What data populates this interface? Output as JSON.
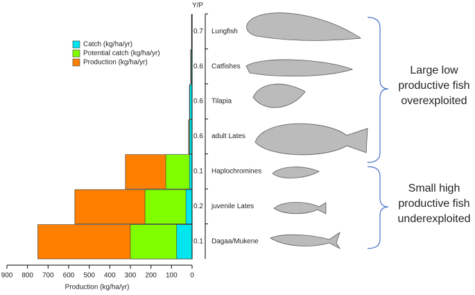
{
  "chart_data": {
    "type": "bar",
    "orientation": "horizontal",
    "categories": [
      "Lungfish",
      "Catfishes",
      "Tilapia",
      "adult Lates",
      "Haplochromines",
      "juvenile Lates",
      "Dagaa/Mukene"
    ],
    "series": [
      {
        "name": "Production (kg/ha/yr)",
        "color": "#ff7f00",
        "values": [
          3,
          7,
          13,
          17,
          324,
          570,
          750
        ]
      },
      {
        "name": "Potential catch (kg/ha/yr)",
        "color": "#80ff00",
        "values": [
          2,
          5,
          12,
          14,
          128,
          229,
          300
        ]
      },
      {
        "name": "Catch (kg/ha/yr)",
        "color": "#00e5ee",
        "values": [
          1,
          4,
          11,
          12,
          13,
          30,
          75
        ]
      }
    ],
    "yp_title": "Y/P",
    "yp_values": [
      0.7,
      0.6,
      0.6,
      0.6,
      0.1,
      0.2,
      0.1
    ],
    "xlim": [
      900,
      0
    ],
    "xticks": [
      900,
      800,
      700,
      600,
      500,
      400,
      300,
      200,
      100,
      0
    ],
    "x_label": "Production (kg/ha/yr)",
    "annotations": [
      {
        "lines": [
          "Large low",
          "productive fish",
          "overexploited"
        ]
      },
      {
        "lines": [
          "Small high",
          "productive fish",
          "underexploited"
        ]
      }
    ]
  }
}
